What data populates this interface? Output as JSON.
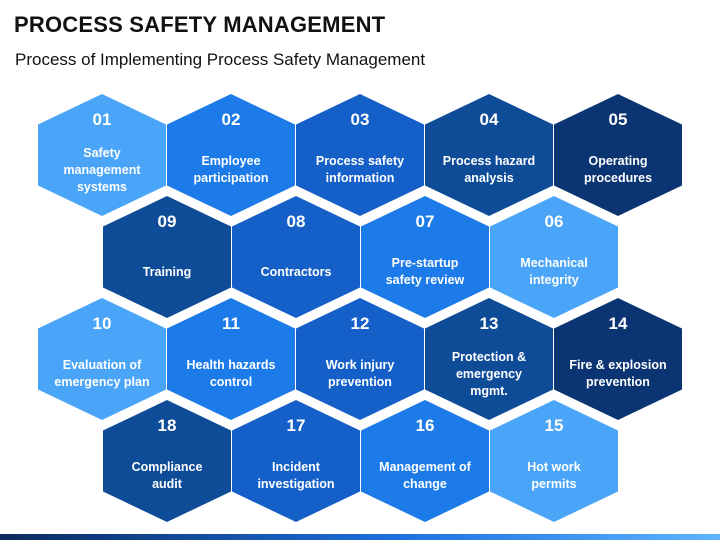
{
  "header": {
    "title": "PROCESS SAFETY MANAGEMENT",
    "subtitle": "Process of Implementing Process Safety Management"
  },
  "colors": {
    "light_blue": "#4aa5f8",
    "medium_blue": "#1c7be8",
    "blue": "#1560c8",
    "dark_blue": "#0f4c98",
    "navy": "#0a3572"
  },
  "hexagons": [
    {
      "num": "01",
      "label": "Safety management systems",
      "color": "#4aa5f8"
    },
    {
      "num": "02",
      "label": "Employee participation",
      "color": "#1c7be8"
    },
    {
      "num": "03",
      "label": "Process safety information",
      "color": "#1560c8"
    },
    {
      "num": "04",
      "label": "Process hazard analysis",
      "color": "#0f4c98"
    },
    {
      "num": "05",
      "label": "Operating procedures",
      "color": "#0a3572"
    },
    {
      "num": "09",
      "label": "Training",
      "color": "#0f4c98"
    },
    {
      "num": "08",
      "label": "Contractors",
      "color": "#1560c8"
    },
    {
      "num": "07",
      "label": "Pre-startup safety review",
      "color": "#1c7be8"
    },
    {
      "num": "06",
      "label": "Mechanical integrity",
      "color": "#4aa5f8"
    },
    {
      "num": "10",
      "label": "Evaluation of emergency plan",
      "color": "#4aa5f8"
    },
    {
      "num": "11",
      "label": "Health hazards control",
      "color": "#1c7be8"
    },
    {
      "num": "12",
      "label": "Work injury prevention",
      "color": "#1560c8"
    },
    {
      "num": "13",
      "label": "Protection & emergency mgmt.",
      "color": "#0f4c98"
    },
    {
      "num": "14",
      "label": "Fire & explosion prevention",
      "color": "#0a3572"
    },
    {
      "num": "18",
      "label": "Compliance audit",
      "color": "#0f4c98"
    },
    {
      "num": "17",
      "label": "Incident investigation",
      "color": "#1560c8"
    },
    {
      "num": "16",
      "label": "Management of change",
      "color": "#1c7be8"
    },
    {
      "num": "15",
      "label": "Hot work permits",
      "color": "#4aa5f8"
    }
  ]
}
